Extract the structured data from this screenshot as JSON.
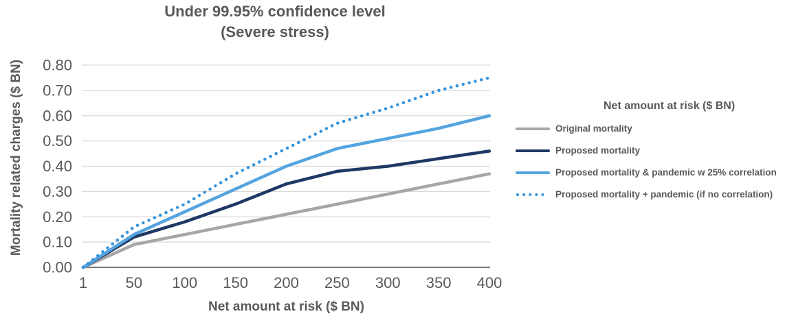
{
  "chart": {
    "title_line1": "Under 99.95% confidence level",
    "title_line2": "(Severe stress)",
    "xlabel": "Net amount at risk ($ BN)",
    "ylabel": "Mortality related charges ($ BN)"
  },
  "legend": {
    "title": "Net amount at risk ($ BN)",
    "items": [
      {
        "label": "Original mortality"
      },
      {
        "label": "Proposed mortality"
      },
      {
        "label": "Proposed mortality & pandemic w 25% correlation"
      },
      {
        "label": "Proposed mortality + pandemic (if no correlation)"
      }
    ]
  },
  "chart_data": {
    "type": "line",
    "title": "Under 99.95% confidence level (Severe stress)",
    "xlabel": "Net amount at risk ($ BN)",
    "ylabel": "Mortality related charges ($ BN)",
    "categories": [
      1,
      50,
      100,
      150,
      200,
      250,
      300,
      350,
      400
    ],
    "y_ticks": [
      "0.00",
      "0.10",
      "0.20",
      "0.30",
      "0.40",
      "0.50",
      "0.60",
      "0.70",
      "0.80"
    ],
    "ylim": [
      0,
      0.8
    ],
    "grid": true,
    "legend_position": "right",
    "legend_title": "Net amount at risk ($ BN)",
    "text_color": "#595959",
    "grid_color": "#D9D9D9",
    "axis_color": "#7F7F7F",
    "series": [
      {
        "name": "Original mortality",
        "color": "#A6A6A6",
        "style": "solid",
        "values": [
          0.0,
          0.09,
          0.13,
          0.17,
          0.21,
          0.25,
          0.29,
          0.33,
          0.37
        ]
      },
      {
        "name": "Proposed mortality",
        "color": "#1F3864",
        "style": "solid",
        "values": [
          0.0,
          0.12,
          0.18,
          0.25,
          0.33,
          0.38,
          0.4,
          0.43,
          0.46
        ]
      },
      {
        "name": "Proposed mortality & pandemic w 25% correlation",
        "color": "#55A4DF",
        "style": "solid",
        "values": [
          0.0,
          0.13,
          0.22,
          0.31,
          0.4,
          0.47,
          0.51,
          0.55,
          0.6
        ]
      },
      {
        "name": "Proposed mortality + pandemic (if no correlation)",
        "color": "#3494DB",
        "style": "dotted",
        "values": [
          0.0,
          0.16,
          0.25,
          0.37,
          0.47,
          0.57,
          0.63,
          0.7,
          0.75
        ]
      }
    ]
  }
}
